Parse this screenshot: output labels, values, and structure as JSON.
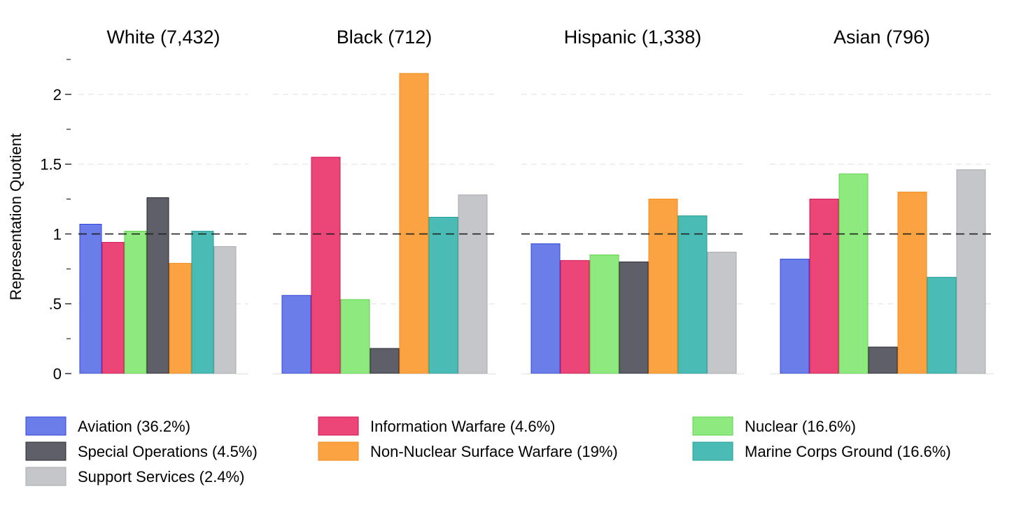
{
  "chart_data": {
    "type": "bar",
    "ylabel": "Representation Quotient",
    "ylim": [
      0,
      2.25
    ],
    "yticks": [
      0,
      0.5,
      1,
      1.5,
      2
    ],
    "ytick_labels": [
      "0",
      ".5",
      "1",
      "1.5",
      "2"
    ],
    "reference_line": 1,
    "grid": true,
    "legend_position": "bottom",
    "series": [
      {
        "name": "Aviation (36.2%)",
        "color": "#6b7de8",
        "edge": "#3246d6"
      },
      {
        "name": "Information Warfare (4.6%)",
        "color": "#ec4577",
        "edge": "#d01456"
      },
      {
        "name": "Nuclear (16.6%)",
        "color": "#8eea7e",
        "edge": "#5ed04c"
      },
      {
        "name": "Special Operations (4.5%)",
        "color": "#5f5f69",
        "edge": "#2a2a32"
      },
      {
        "name": "Non-Nuclear Surface Warfare (19%)",
        "color": "#fba343",
        "edge": "#f08a1a"
      },
      {
        "name": "Marine Corps Ground (16.6%)",
        "color": "#4bbcb5",
        "edge": "#24a098"
      },
      {
        "name": "Support Services (2.4%)",
        "color": "#c5c6ca",
        "edge": "#a8a9ae"
      }
    ],
    "panels": [
      {
        "title": "White (7,432)",
        "values": [
          1.07,
          0.94,
          1.02,
          1.26,
          0.79,
          1.02,
          0.91
        ]
      },
      {
        "title": "Black (712)",
        "values": [
          0.56,
          1.55,
          0.53,
          0.18,
          2.15,
          1.12,
          1.28
        ]
      },
      {
        "title": "Hispanic (1,338)",
        "values": [
          0.93,
          0.81,
          0.85,
          0.8,
          1.25,
          1.13,
          0.87
        ]
      },
      {
        "title": "Asian (796)",
        "values": [
          0.82,
          1.25,
          1.43,
          0.19,
          1.3,
          0.69,
          1.46
        ]
      }
    ]
  }
}
